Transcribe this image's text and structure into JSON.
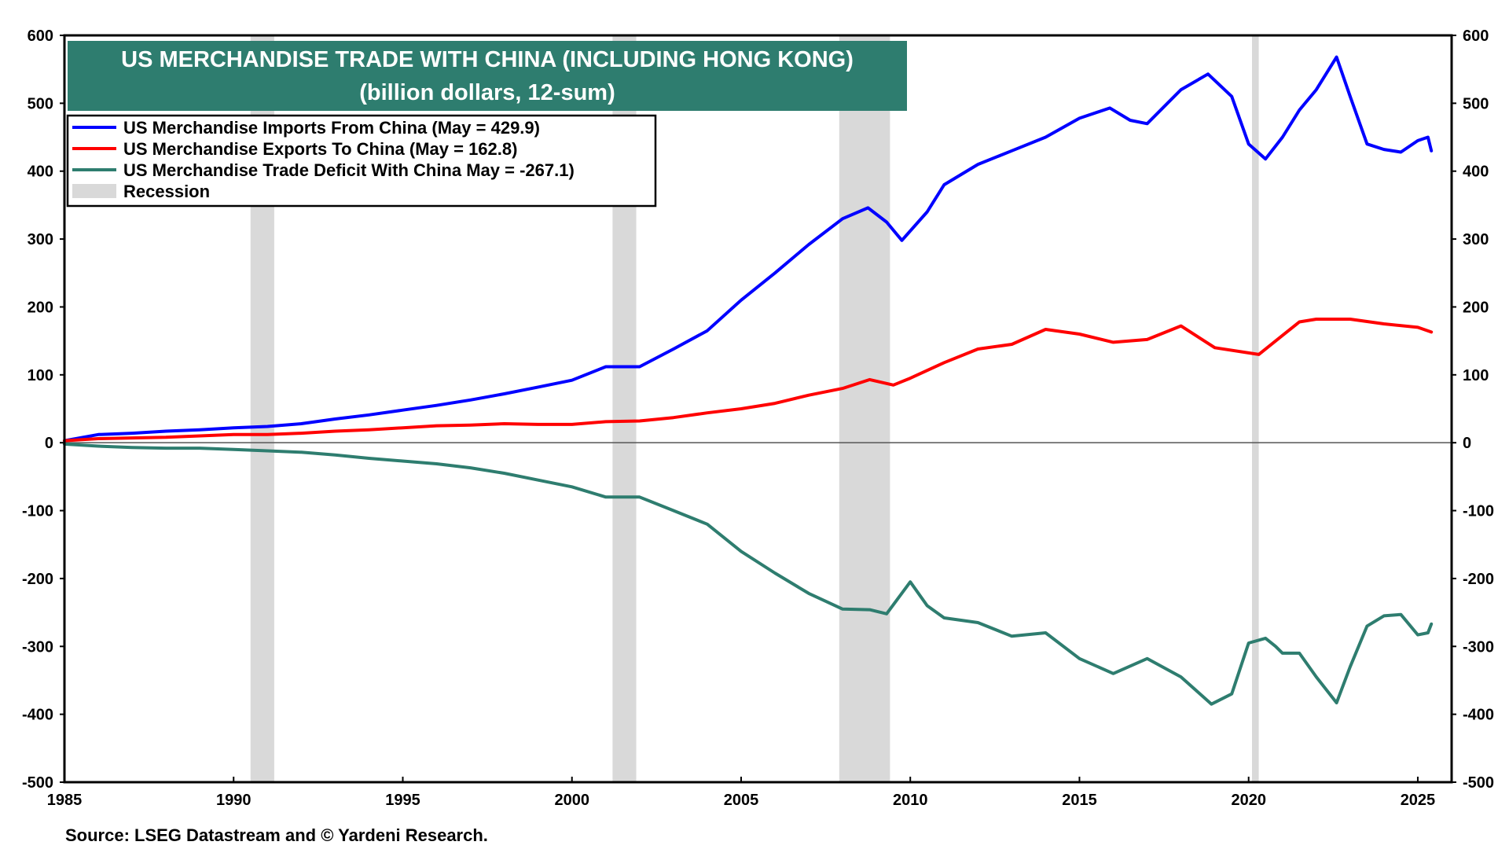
{
  "chart_data": {
    "type": "line",
    "title": "US MERCHANDISE TRADE WITH CHINA (INCLUDING HONG KONG)",
    "subtitle": "(billion dollars, 12-sum)",
    "source": "Source: LSEG Datastream and © Yardeni Research.",
    "xlim": [
      1985,
      2026
    ],
    "ylim": [
      -500,
      600
    ],
    "x_ticks": [
      1985,
      1990,
      1995,
      2000,
      2005,
      2010,
      2015,
      2020,
      2025
    ],
    "y_ticks": [
      600,
      500,
      400,
      300,
      200,
      100,
      0,
      -100,
      -200,
      -300,
      -400,
      -500
    ],
    "grid": false,
    "legend_position": "top-left",
    "recessions": [
      [
        1990.5,
        1991.2
      ],
      [
        2001.2,
        2001.9
      ],
      [
        2007.9,
        2009.4
      ],
      [
        2020.1,
        2020.3
      ]
    ],
    "recession_label": "Recession",
    "colors": {
      "imports": "#0000ff",
      "exports": "#ff0000",
      "deficit": "#2e7d6f",
      "recession": "#d9d9d9",
      "title_bg": "#2e7d6f"
    },
    "series": [
      {
        "key": "imports",
        "name": "US Merchandise Imports From China (May = 429.9)",
        "color": "#0000ff",
        "points": [
          [
            1985,
            3
          ],
          [
            1986,
            12
          ],
          [
            1987,
            14
          ],
          [
            1988,
            17
          ],
          [
            1989,
            19
          ],
          [
            1990,
            22
          ],
          [
            1991,
            24
          ],
          [
            1992,
            28
          ],
          [
            1993,
            35
          ],
          [
            1994,
            41
          ],
          [
            1995,
            48
          ],
          [
            1996,
            55
          ],
          [
            1997,
            63
          ],
          [
            1998,
            72
          ],
          [
            1999,
            82
          ],
          [
            2000,
            92
          ],
          [
            2001,
            112
          ],
          [
            2002,
            112
          ],
          [
            2003,
            138
          ],
          [
            2004,
            165
          ],
          [
            2005,
            210
          ],
          [
            2006,
            250
          ],
          [
            2007,
            292
          ],
          [
            2008,
            330
          ],
          [
            2008.75,
            346
          ],
          [
            2009.3,
            325
          ],
          [
            2009.75,
            298
          ],
          [
            2010.5,
            340
          ],
          [
            2011,
            380
          ],
          [
            2012,
            410
          ],
          [
            2013,
            430
          ],
          [
            2014,
            450
          ],
          [
            2015,
            478
          ],
          [
            2015.9,
            493
          ],
          [
            2016.5,
            475
          ],
          [
            2017,
            470
          ],
          [
            2018,
            520
          ],
          [
            2018.8,
            543
          ],
          [
            2019.5,
            510
          ],
          [
            2020,
            440
          ],
          [
            2020.5,
            418
          ],
          [
            2021,
            450
          ],
          [
            2021.5,
            490
          ],
          [
            2022,
            520
          ],
          [
            2022.6,
            568
          ],
          [
            2023,
            510
          ],
          [
            2023.5,
            440
          ],
          [
            2024,
            432
          ],
          [
            2024.5,
            428
          ],
          [
            2025,
            445
          ],
          [
            2025.3,
            450
          ],
          [
            2025.4,
            430
          ]
        ]
      },
      {
        "key": "exports",
        "name": "US Merchandise Exports To China (May = 162.8)",
        "color": "#ff0000",
        "points": [
          [
            1985,
            3
          ],
          [
            1986,
            6
          ],
          [
            1987,
            7
          ],
          [
            1988,
            8
          ],
          [
            1989,
            10
          ],
          [
            1990,
            12
          ],
          [
            1991,
            12
          ],
          [
            1992,
            14
          ],
          [
            1993,
            17
          ],
          [
            1994,
            19
          ],
          [
            1995,
            22
          ],
          [
            1996,
            25
          ],
          [
            1997,
            26
          ],
          [
            1998,
            28
          ],
          [
            1999,
            27
          ],
          [
            2000,
            27
          ],
          [
            2001,
            31
          ],
          [
            2002,
            32
          ],
          [
            2003,
            37
          ],
          [
            2004,
            44
          ],
          [
            2005,
            50
          ],
          [
            2006,
            58
          ],
          [
            2007,
            70
          ],
          [
            2008,
            80
          ],
          [
            2008.8,
            93
          ],
          [
            2009.5,
            85
          ],
          [
            2010,
            95
          ],
          [
            2011,
            118
          ],
          [
            2012,
            138
          ],
          [
            2013,
            145
          ],
          [
            2014,
            167
          ],
          [
            2015,
            160
          ],
          [
            2016,
            148
          ],
          [
            2017,
            152
          ],
          [
            2018,
            172
          ],
          [
            2019,
            140
          ],
          [
            2020.3,
            130
          ],
          [
            2021,
            158
          ],
          [
            2021.5,
            178
          ],
          [
            2022,
            182
          ],
          [
            2023,
            182
          ],
          [
            2024,
            175
          ],
          [
            2025,
            170
          ],
          [
            2025.4,
            163
          ]
        ]
      },
      {
        "key": "deficit",
        "name": "US Merchandise Trade Deficit With China  May = -267.1)",
        "color": "#2e7d6f",
        "points": [
          [
            1985,
            -2
          ],
          [
            1986,
            -5
          ],
          [
            1987,
            -7
          ],
          [
            1988,
            -8
          ],
          [
            1989,
            -8
          ],
          [
            1990,
            -10
          ],
          [
            1991,
            -12
          ],
          [
            1992,
            -14
          ],
          [
            1993,
            -18
          ],
          [
            1994,
            -23
          ],
          [
            1995,
            -27
          ],
          [
            1996,
            -31
          ],
          [
            1997,
            -37
          ],
          [
            1998,
            -45
          ],
          [
            1999,
            -55
          ],
          [
            2000,
            -65
          ],
          [
            2001,
            -80
          ],
          [
            2002,
            -80
          ],
          [
            2003,
            -100
          ],
          [
            2004,
            -120
          ],
          [
            2005,
            -160
          ],
          [
            2006,
            -192
          ],
          [
            2007,
            -222
          ],
          [
            2008,
            -245
          ],
          [
            2008.8,
            -246
          ],
          [
            2009.3,
            -252
          ],
          [
            2010,
            -205
          ],
          [
            2010.5,
            -240
          ],
          [
            2011,
            -258
          ],
          [
            2012,
            -265
          ],
          [
            2013,
            -285
          ],
          [
            2014,
            -280
          ],
          [
            2015,
            -318
          ],
          [
            2016,
            -340
          ],
          [
            2017,
            -318
          ],
          [
            2018,
            -345
          ],
          [
            2018.9,
            -385
          ],
          [
            2019.5,
            -370
          ],
          [
            2020,
            -295
          ],
          [
            2020.5,
            -288
          ],
          [
            2020.8,
            -300
          ],
          [
            2021,
            -310
          ],
          [
            2021.5,
            -310
          ],
          [
            2022,
            -345
          ],
          [
            2022.6,
            -383
          ],
          [
            2023,
            -330
          ],
          [
            2023.5,
            -270
          ],
          [
            2024,
            -255
          ],
          [
            2024.5,
            -253
          ],
          [
            2025,
            -283
          ],
          [
            2025.3,
            -280
          ],
          [
            2025.4,
            -267
          ]
        ]
      }
    ]
  }
}
